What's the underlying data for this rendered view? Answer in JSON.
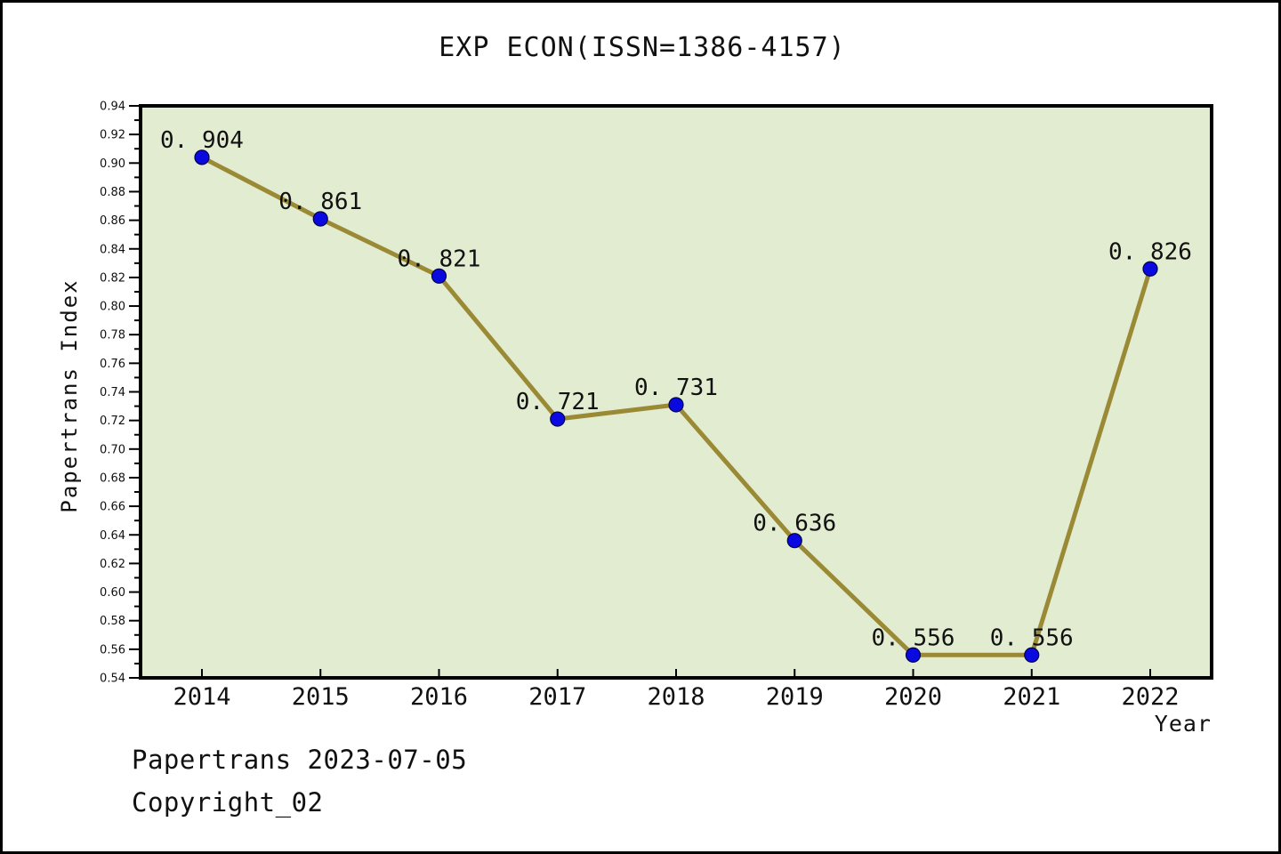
{
  "chart": {
    "title": "EXP ECON(ISSN=1386-4157)",
    "ylabel": "Papertrans Index",
    "xlabel": "Year"
  },
  "footer": {
    "line1": "Papertrans 2023-07-05",
    "line2": "Copyright_02"
  },
  "chart_data": {
    "type": "line",
    "title": "EXP ECON(ISSN=1386-4157)",
    "xlabel": "Year",
    "ylabel": "Papertrans Index",
    "x": [
      2014,
      2015,
      2016,
      2017,
      2018,
      2019,
      2020,
      2021,
      2022
    ],
    "series": [
      {
        "name": "Papertrans Index",
        "values": [
          0.904,
          0.861,
          0.821,
          0.721,
          0.731,
          0.636,
          0.556,
          0.556,
          0.826
        ]
      }
    ],
    "point_labels": [
      "0.904",
      "0.861",
      "0.821",
      "0.721",
      "0.731",
      "0.636",
      "0.556",
      "0.556",
      "0.826"
    ],
    "ylim": [
      0.54,
      0.94
    ],
    "yticks": {
      "labels": [
        "0.54",
        "0.56",
        "0.58",
        "0.60",
        "0.62",
        "0.64",
        "0.66",
        "0.68",
        "0.70",
        "0.72",
        "0.74",
        "0.76",
        "0.78",
        "0.80",
        "0.82",
        "0.84",
        "0.86",
        "0.88",
        "0.90",
        "0.92",
        "0.94"
      ],
      "step": 0.02,
      "minor_step": 0.01
    },
    "grid": false,
    "legend": "none",
    "colors": {
      "plot_bg": "#e2ecd1",
      "line": "#9a8a35",
      "marker": "#0a0ae0",
      "marker_edge": "#00004d",
      "axis": "#000000",
      "text": "#111111"
    }
  }
}
